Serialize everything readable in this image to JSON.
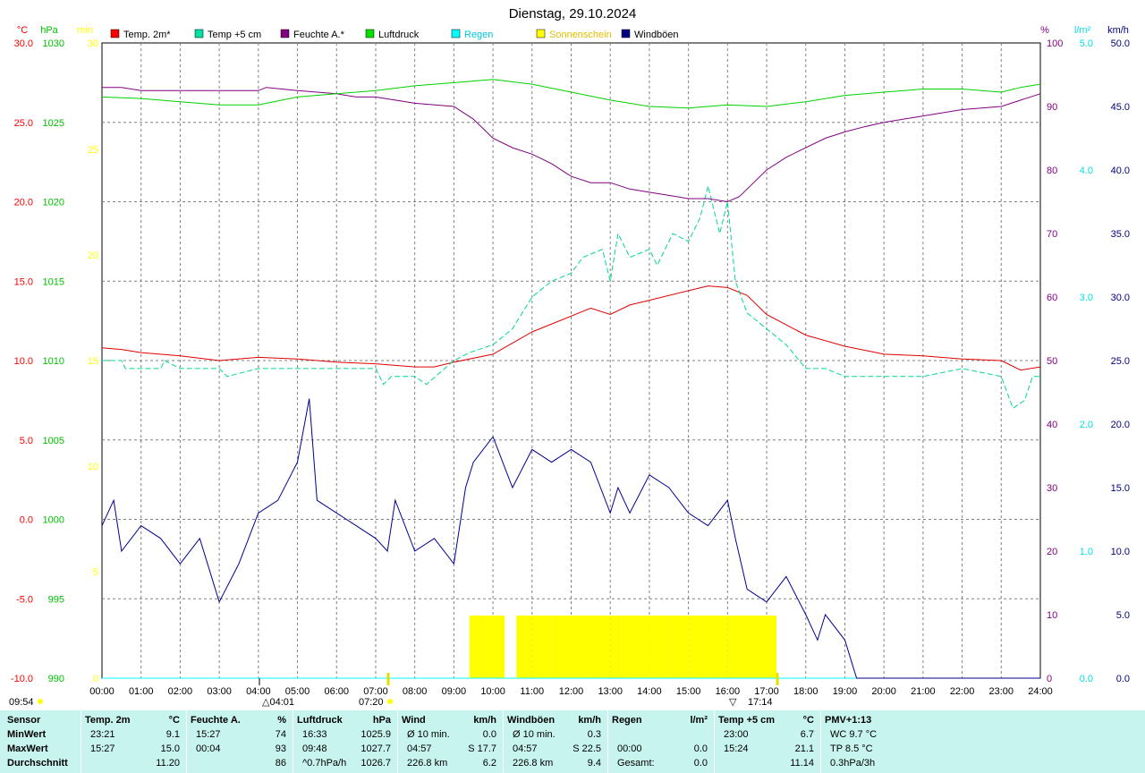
{
  "title": "Dienstag, 29.10.2024",
  "axes": {
    "left": [
      {
        "unit": "°C",
        "color": "#ff0000",
        "ticks": [
          "30.0",
          "25.0",
          "20.0",
          "15.0",
          "10.0",
          "5.0",
          "0.0",
          "-5.0",
          "-10.0"
        ]
      },
      {
        "unit": "hPa",
        "color": "#00c000",
        "ticks": [
          "1030",
          "1025",
          "1020",
          "1015",
          "1010",
          "1005",
          "1000",
          "995",
          "990"
        ]
      },
      {
        "unit": "min",
        "color": "#ffff00",
        "ticks": [
          "30",
          "25",
          "20",
          "15",
          "10",
          "5",
          "0"
        ]
      }
    ],
    "right": [
      {
        "unit": "%",
        "color": "#800080",
        "ticks": [
          "100",
          "90",
          "80",
          "70",
          "60",
          "50",
          "40",
          "30",
          "20",
          "10",
          "0"
        ]
      },
      {
        "unit": "l/m²",
        "color": "#00e0e0",
        "ticks": [
          "5.0",
          "4.0",
          "3.0",
          "2.0",
          "1.0",
          "0.0"
        ]
      },
      {
        "unit": "km/h",
        "color": "#000080",
        "ticks": [
          "50.0",
          "45.0",
          "40.0",
          "35.0",
          "30.0",
          "25.0",
          "20.0",
          "15.0",
          "10.0",
          "5.0",
          "0.0"
        ]
      }
    ],
    "x_ticks": [
      "00:00",
      "01:00",
      "02:00",
      "03:00",
      "04:00",
      "05:00",
      "06:00",
      "07:00",
      "08:00",
      "09:00",
      "10:00",
      "11:00",
      "12:00",
      "13:00",
      "14:00",
      "15:00",
      "16:00",
      "17:00",
      "18:00",
      "19:00",
      "20:00",
      "21:00",
      "22:00",
      "23:00",
      "24:00"
    ]
  },
  "legend": [
    {
      "label": "Temp. 2m*",
      "color": "#ff0000"
    },
    {
      "label": "Temp +5 cm",
      "color": "#00e0a0"
    },
    {
      "label": "Feuchte A.*",
      "color": "#800080"
    },
    {
      "label": "Luftdruck",
      "color": "#00e000"
    },
    {
      "label": "Regen",
      "color": "#00ffff"
    },
    {
      "label": "Sonnenschein",
      "color": "#ffff00"
    },
    {
      "label": "Windböen",
      "color": "#000080"
    }
  ],
  "markers": {
    "time_left": "09:54",
    "moonrise": "04:01",
    "sunrise": "07:20",
    "sunset": "17:14"
  },
  "chart_data": {
    "type": "line",
    "x_range_hours": [
      0,
      24
    ],
    "series": [
      {
        "name": "Temp. 2m*",
        "axis": "°C",
        "ylim": [
          -10,
          30
        ],
        "x": [
          0,
          0.5,
          1,
          2,
          3,
          4,
          5,
          6,
          7,
          8,
          8.5,
          9,
          10,
          11,
          12,
          12.5,
          13,
          13.5,
          14,
          15,
          15.5,
          16,
          16.5,
          17,
          18,
          19,
          20,
          21,
          22,
          23,
          23.5,
          24
        ],
        "y": [
          10.8,
          10.7,
          10.5,
          10.3,
          10.0,
          10.2,
          10.1,
          9.9,
          9.8,
          9.6,
          9.6,
          9.9,
          10.4,
          11.8,
          12.8,
          13.3,
          12.9,
          13.5,
          13.8,
          14.4,
          14.7,
          14.6,
          14.1,
          12.9,
          11.6,
          10.9,
          10.4,
          10.3,
          10.1,
          10.0,
          9.4,
          9.6
        ]
      },
      {
        "name": "Temp +5 cm",
        "axis": "°C",
        "ylim": [
          -10,
          30
        ],
        "x": [
          0,
          0.5,
          0.6,
          1,
          1.5,
          1.6,
          2,
          3,
          3.2,
          4,
          5,
          6,
          7,
          7.2,
          7.4,
          8,
          8.3,
          9,
          9.4,
          10,
          10.5,
          11,
          11.5,
          12,
          12.3,
          12.8,
          13,
          13.2,
          13.5,
          14,
          14.2,
          14.6,
          15,
          15.3,
          15.5,
          15.8,
          16,
          16.2,
          16.5,
          17,
          17.5,
          18,
          18.5,
          19,
          20,
          21,
          22,
          23,
          23.3,
          23.6,
          23.8,
          24
        ],
        "y": [
          10.0,
          10.0,
          9.5,
          9.5,
          9.5,
          10.0,
          9.5,
          9.5,
          9.0,
          9.5,
          9.5,
          9.5,
          9.5,
          8.5,
          9.0,
          9.0,
          8.5,
          10.0,
          10.5,
          11.0,
          12.0,
          14.0,
          15.0,
          15.5,
          16.5,
          17.0,
          15.0,
          18.0,
          16.5,
          17.0,
          16.0,
          18.0,
          17.5,
          19.0,
          21.0,
          18.0,
          20.0,
          15.0,
          13.0,
          12.0,
          11.0,
          9.5,
          9.5,
          9.0,
          9.0,
          9.0,
          9.5,
          9.0,
          7.0,
          7.5,
          9.0,
          9.0
        ]
      },
      {
        "name": "Feuchte A.*",
        "axis": "%",
        "ylim": [
          0,
          100
        ],
        "x": [
          0,
          0.5,
          1,
          2,
          3,
          4,
          4.2,
          5,
          6,
          6.5,
          7,
          7.5,
          8,
          9,
          9.5,
          10,
          10.5,
          11,
          11.5,
          12,
          12.5,
          13,
          13.5,
          14,
          14.5,
          15,
          15.5,
          16,
          16.3,
          16.5,
          17,
          17.5,
          18,
          18.5,
          19,
          19.5,
          20,
          21,
          22,
          23,
          23.5,
          24
        ],
        "y": [
          93,
          93,
          92.5,
          92.5,
          92.5,
          92.5,
          93,
          92.5,
          92,
          91.5,
          91.5,
          91,
          90.5,
          90,
          88,
          85,
          83.5,
          82.5,
          81,
          79,
          78,
          78,
          77,
          76.5,
          76,
          75.5,
          75.5,
          75,
          75.8,
          77,
          80,
          82,
          83.5,
          85,
          86,
          86.8,
          87.5,
          88.5,
          89.5,
          90,
          91,
          92
        ]
      },
      {
        "name": "Luftdruck",
        "axis": "hPa",
        "ylim": [
          990,
          1030
        ],
        "x": [
          0,
          1,
          2,
          3,
          4,
          5,
          6,
          7,
          8,
          9,
          10,
          11,
          12,
          13,
          14,
          15,
          16,
          17,
          18,
          19,
          20,
          21,
          22,
          23,
          23.5,
          24
        ],
        "y": [
          1026.6,
          1026.5,
          1026.3,
          1026.1,
          1026.1,
          1026.6,
          1026.8,
          1027.0,
          1027.3,
          1027.5,
          1027.7,
          1027.4,
          1026.9,
          1026.4,
          1026.0,
          1025.9,
          1026.1,
          1026.0,
          1026.3,
          1026.7,
          1026.9,
          1027.1,
          1027.1,
          1026.9,
          1027.2,
          1027.4
        ]
      },
      {
        "name": "Regen",
        "axis": "l/m²",
        "ylim": [
          0,
          5
        ],
        "x": [
          0,
          24
        ],
        "y": [
          0,
          0
        ]
      },
      {
        "name": "Windböen",
        "axis": "km/h",
        "ylim": [
          0,
          50
        ],
        "x": [
          0,
          0.3,
          0.5,
          1,
          1.5,
          2,
          2.5,
          3,
          3.5,
          4,
          4.5,
          5,
          5.3,
          5.5,
          6,
          6.5,
          7,
          7.3,
          7.5,
          8,
          8.5,
          9,
          9.3,
          9.5,
          10,
          10.5,
          11,
          11.5,
          12,
          12.5,
          13,
          13.2,
          13.5,
          14,
          14.5,
          15,
          15.5,
          16,
          16.2,
          16.5,
          17,
          17.5,
          18,
          18.3,
          18.5,
          19,
          19.2,
          19.3,
          24
        ],
        "y": [
          12,
          14,
          10,
          12,
          11,
          9,
          11,
          6,
          9,
          13,
          14,
          17,
          22,
          14,
          13,
          12,
          11,
          10,
          14,
          10,
          11,
          9,
          15,
          17,
          19,
          15,
          18,
          17,
          18,
          17,
          13,
          15,
          13,
          16,
          15,
          13,
          12,
          14,
          11,
          7,
          6,
          8,
          5,
          3,
          5,
          3,
          1,
          0,
          0
        ]
      },
      {
        "name": "Sonnenschein",
        "axis": "min",
        "ylim": [
          0,
          30
        ],
        "x": [
          9.4,
          9.8,
          10.3,
          10.6,
          11,
          11.5,
          12,
          12.5,
          13,
          13.3,
          13.6,
          14,
          14.5,
          15,
          15.5,
          16,
          16.3,
          17.25
        ],
        "y": [
          2,
          2,
          0,
          3,
          3,
          3,
          3,
          3,
          3,
          2,
          3,
          3,
          3,
          3,
          3,
          3,
          3,
          0.5
        ]
      }
    ]
  },
  "stats": {
    "row_labels": [
      "Sensor",
      "MinWert",
      "MaxWert",
      "Durchschnitt"
    ],
    "columns": [
      {
        "title": "Temp. 2m",
        "unit": "°C",
        "rows": [
          [
            "23:21",
            "9.1"
          ],
          [
            "15:27",
            "15.0"
          ],
          [
            "",
            "11.20"
          ]
        ]
      },
      {
        "title": "Feuchte A.",
        "unit": "%",
        "rows": [
          [
            "15:27",
            "74"
          ],
          [
            "00:04",
            "93"
          ],
          [
            "",
            "86"
          ]
        ]
      },
      {
        "title": "Luftdruck",
        "unit": "hPa",
        "rows": [
          [
            "16:33",
            "1025.9"
          ],
          [
            "09:48",
            "1027.7"
          ],
          [
            "^0.7hPa/h",
            "1026.7"
          ]
        ]
      },
      {
        "title": "Wind",
        "unit": "km/h",
        "rows": [
          [
            "Ø 10 min.",
            "0.0"
          ],
          [
            "04:57",
            "S 17.7"
          ],
          [
            "226.8 km",
            "6.2"
          ]
        ]
      },
      {
        "title": "Windböen",
        "unit": "km/h",
        "rows": [
          [
            "Ø 10 min.",
            "0.3"
          ],
          [
            "04:57",
            "S 22.5"
          ],
          [
            "226.8 km",
            "9.4"
          ]
        ]
      },
      {
        "title": "Regen",
        "unit": "l/m²",
        "rows": [
          [
            "",
            ""
          ],
          [
            "00:00",
            "0.0"
          ],
          [
            "Gesamt:",
            "0.0"
          ]
        ]
      },
      {
        "title": "Temp +5 cm",
        "unit": "°C",
        "rows": [
          [
            "23:00",
            "6.7"
          ],
          [
            "15:24",
            "21.1"
          ],
          [
            "",
            "11.14"
          ]
        ]
      },
      {
        "title": "PMV+1:13",
        "unit": "",
        "rows": [
          [
            "WC 9.7 °C",
            ""
          ],
          [
            "TP 8.5 °C",
            ""
          ],
          [
            "0.3hPa/3h",
            ""
          ]
        ]
      }
    ]
  }
}
